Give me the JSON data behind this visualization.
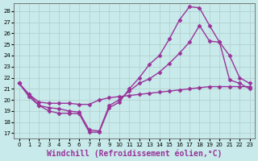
{
  "background_color": "#c8eaea",
  "grid_color": "#b0cccc",
  "line_color": "#993399",
  "marker": "D",
  "markersize": 2.5,
  "linewidth": 1.0,
  "xlabel": "Windchill (Refroidissement éolien,°C)",
  "xlabel_fontsize": 7.0,
  "ylabel_ticks": [
    17,
    18,
    19,
    20,
    21,
    22,
    23,
    24,
    25,
    26,
    27,
    28
  ],
  "xlabel_ticks": [
    0,
    1,
    2,
    3,
    4,
    5,
    6,
    7,
    8,
    9,
    10,
    11,
    12,
    13,
    14,
    15,
    16,
    17,
    18,
    19,
    20,
    21,
    22,
    23
  ],
  "xlim": [
    -0.5,
    23.5
  ],
  "ylim": [
    16.5,
    28.7
  ],
  "line1_x": [
    0,
    1,
    2,
    3,
    4,
    5,
    6,
    7,
    8,
    9,
    10,
    11,
    12,
    13,
    14,
    15,
    16,
    17,
    18,
    19,
    20,
    21,
    22,
    23
  ],
  "line1_y": [
    21.5,
    20.3,
    19.5,
    19.0,
    18.8,
    18.8,
    18.75,
    17.1,
    17.1,
    19.3,
    19.8,
    21.0,
    22.0,
    23.2,
    24.0,
    25.5,
    27.2,
    28.4,
    28.3,
    26.7,
    25.2,
    21.8,
    21.5,
    21.0
  ],
  "line2_x": [
    0,
    1,
    2,
    3,
    4,
    5,
    6,
    7,
    8,
    9,
    10,
    11,
    12,
    13,
    14,
    15,
    16,
    17,
    18,
    19,
    20,
    21,
    22,
    23
  ],
  "line2_y": [
    21.5,
    20.5,
    19.5,
    19.3,
    19.2,
    19.0,
    18.9,
    17.3,
    17.2,
    19.5,
    20.0,
    20.8,
    21.5,
    21.9,
    22.5,
    23.3,
    24.2,
    25.2,
    26.7,
    25.3,
    25.2,
    24.0,
    22.0,
    21.5
  ],
  "line3_x": [
    0,
    1,
    2,
    3,
    4,
    5,
    6,
    7,
    8,
    9,
    10,
    11,
    12,
    13,
    14,
    15,
    16,
    17,
    18,
    19,
    20,
    21,
    22,
    23
  ],
  "line3_y": [
    21.5,
    20.5,
    19.8,
    19.7,
    19.7,
    19.7,
    19.6,
    19.6,
    20.0,
    20.2,
    20.3,
    20.4,
    20.5,
    20.6,
    20.7,
    20.8,
    20.9,
    21.0,
    21.1,
    21.2,
    21.2,
    21.2,
    21.2,
    21.2
  ]
}
